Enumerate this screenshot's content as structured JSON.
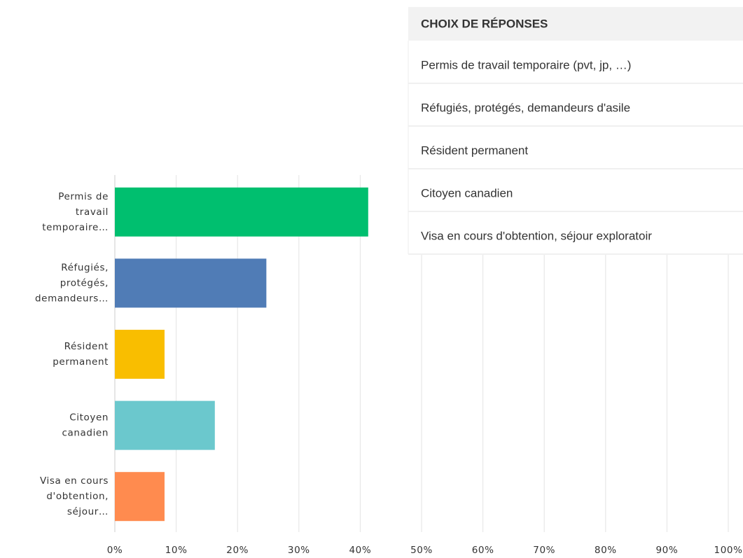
{
  "chart_data": {
    "type": "hbar",
    "categories": [
      [
        "Permis de",
        "travail",
        "temporaire…"
      ],
      [
        "Réfugiés,",
        "protégés,",
        "demandeurs…"
      ],
      [
        "Résident",
        "permanent"
      ],
      [
        "Citoyen",
        "canadien"
      ],
      [
        "Visa en cours",
        "d'obtention,",
        "séjour…"
      ]
    ],
    "values": [
      41.3,
      24.7,
      8.1,
      16.3,
      8.1
    ],
    "colors": [
      "#00bf6f",
      "#507cb6",
      "#f9be00",
      "#6bc8cd",
      "#ff8b4f"
    ],
    "xlim": [
      0,
      100
    ],
    "xticks": [
      {
        "value": 0,
        "label": "0%"
      },
      {
        "value": 10,
        "label": "10%"
      },
      {
        "value": 20,
        "label": "20%"
      },
      {
        "value": 30,
        "label": "30%"
      },
      {
        "value": 40,
        "label": "40%"
      },
      {
        "value": 50,
        "label": "50%"
      },
      {
        "value": 60,
        "label": "60%"
      },
      {
        "value": 70,
        "label": "70%"
      },
      {
        "value": 80,
        "label": "80%"
      },
      {
        "value": 90,
        "label": "90%"
      },
      {
        "value": 100,
        "label": "100%"
      }
    ],
    "grid": true
  },
  "table": {
    "header": "CHOIX DE RÉPONSES",
    "rows": [
      "Permis de travail temporaire (pvt, jp, …)",
      "Réfugiés, protégés, demandeurs d'asile",
      "Résident permanent",
      "Citoyen canadien",
      "Visa en cours d'obtention, séjour exploratoir"
    ]
  }
}
